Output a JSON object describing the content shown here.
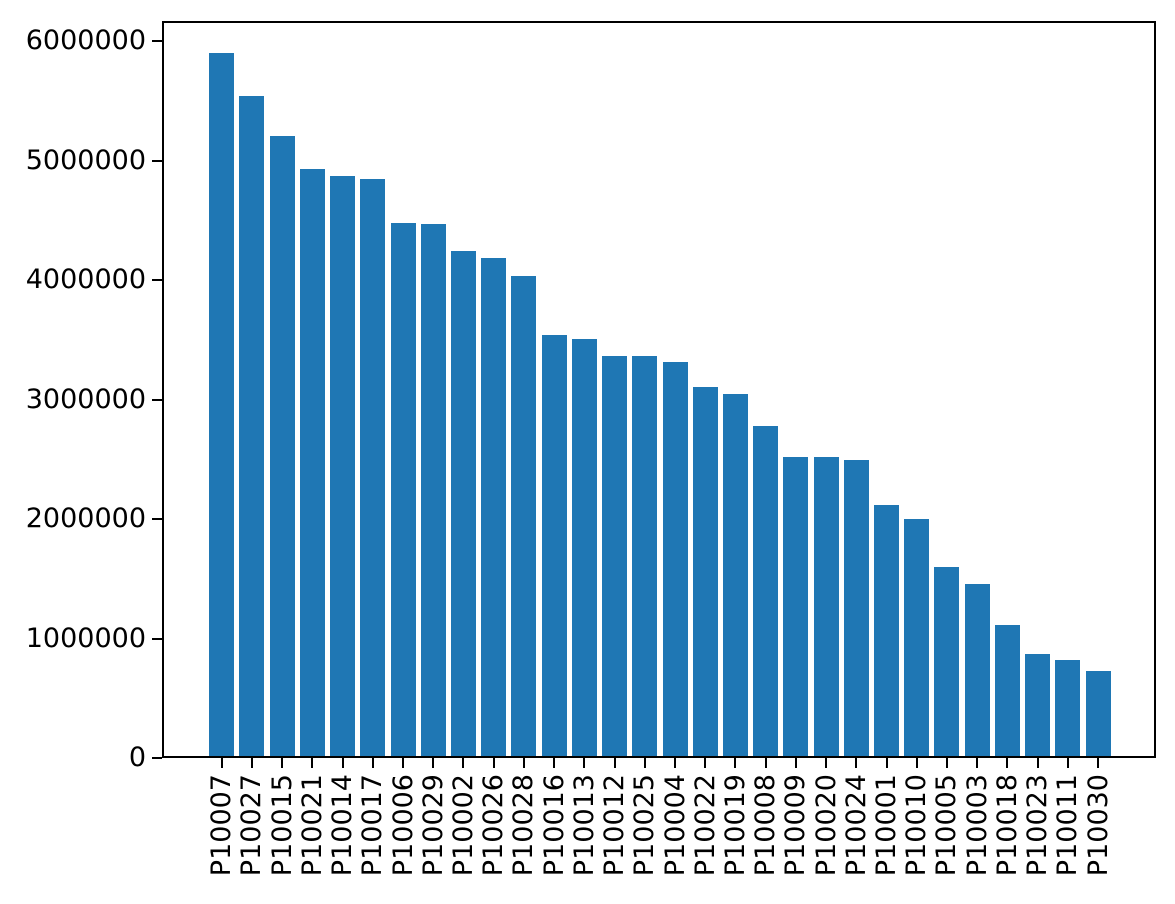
{
  "figure": {
    "background": "#ffffff",
    "title": ""
  },
  "chart_data": {
    "type": "bar",
    "title": "",
    "xlabel": "",
    "ylabel": "",
    "bar_color": "#1f77b4",
    "axis_color": "#000000",
    "grid": false,
    "legend": null,
    "ylim": [
      0,
      6168000
    ],
    "yticks": [
      0,
      1000000,
      2000000,
      3000000,
      4000000,
      5000000,
      6000000
    ],
    "ytick_labels": [
      "0",
      "1000000",
      "2000000",
      "3000000",
      "4000000",
      "5000000",
      "6000000"
    ],
    "xtick_rotation_degrees": 90,
    "categories": [
      "P10007",
      "P10027",
      "P10015",
      "P10021",
      "P10014",
      "P10017",
      "P10006",
      "P10029",
      "P10002",
      "P10026",
      "P10028",
      "P10016",
      "P10013",
      "P10012",
      "P10025",
      "P10004",
      "P10022",
      "P10019",
      "P10008",
      "P10009",
      "P10020",
      "P10024",
      "P10001",
      "P10010",
      "P10005",
      "P10003",
      "P10018",
      "P10023",
      "P10011",
      "P10030"
    ],
    "values": [
      5880000,
      5520000,
      5190000,
      4910000,
      4850000,
      4830000,
      4460000,
      4450000,
      4230000,
      4170000,
      4020000,
      3520000,
      3490000,
      3350000,
      3350000,
      3300000,
      3090000,
      3030000,
      2760000,
      2500000,
      2500000,
      2480000,
      2100000,
      1980000,
      1580000,
      1440000,
      1100000,
      850000,
      800000,
      710000
    ]
  }
}
